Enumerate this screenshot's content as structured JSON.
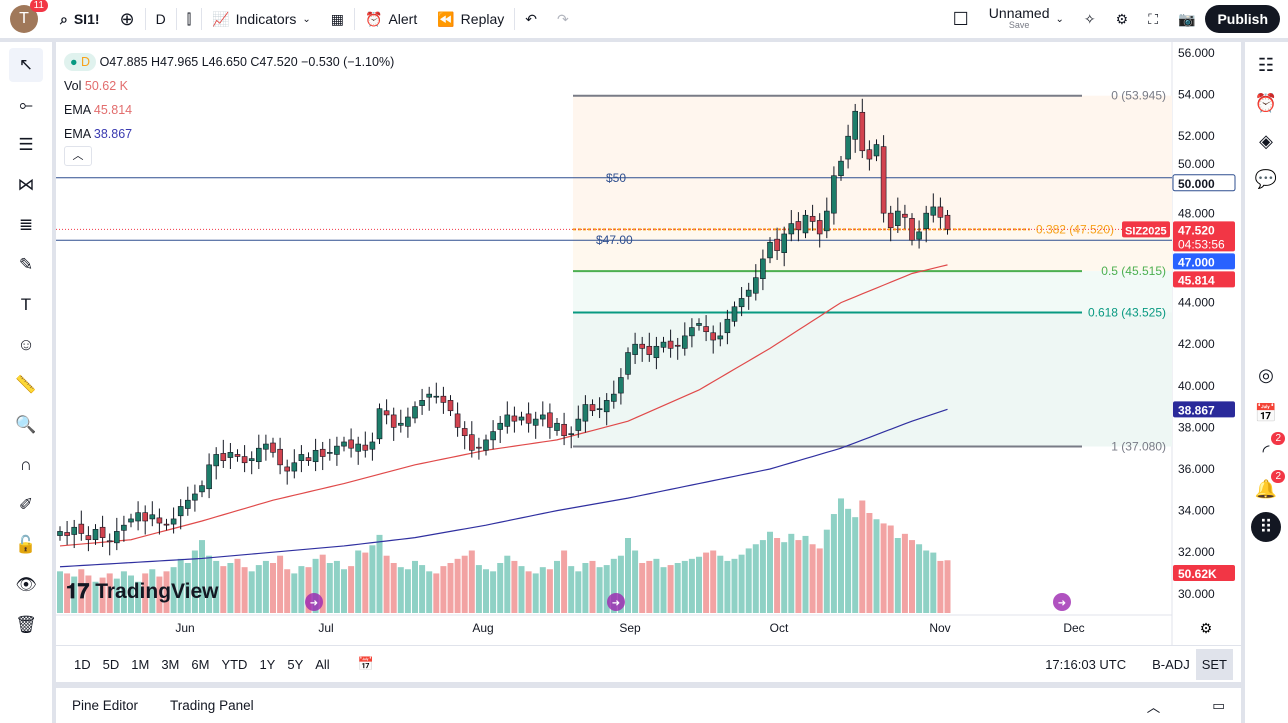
{
  "topbar": {
    "avatar_letter": "T",
    "notifications": "11",
    "symbol": "SI1!",
    "interval": "D",
    "indicators": "Indicators",
    "alert": "Alert",
    "replay": "Replay",
    "layout_name": "Unnamed",
    "layout_sub": "Save",
    "publish": "Publish"
  },
  "legend": {
    "interval": "D",
    "ohlc": "O47.885 H47.965 L46.650 C47.520 −0.530 (−1.10%)",
    "vol_label": "Vol",
    "vol_value": "50.62 K",
    "ema1_label": "EMA",
    "ema1_value": "45.814",
    "ema2_label": "EMA",
    "ema2_value": "38.867"
  },
  "colors": {
    "up": "#26a69a",
    "down": "#ef5350",
    "candle_up": "#1e7d6a",
    "candle_down": "#d2434f",
    "ema_fast": "#e04a4a",
    "ema_slow": "#3030a0",
    "hline": "#2f4f8f",
    "accent": "#2962ff"
  },
  "price_axis": [
    "56.000",
    "54.000",
    "52.000",
    "50.000",
    "48.000",
    "44.000",
    "42.000",
    "40.000",
    "38.000",
    "36.000",
    "34.000",
    "32.000",
    "30.000"
  ],
  "price_tags": {
    "symbol": "SIZ2025",
    "last": "47.520",
    "countdown": "04:53:56",
    "line": "47.000",
    "ema_fast": "45.814",
    "ema_slow": "38.867",
    "volume": "50.62K",
    "level50": "50.000"
  },
  "time_axis": [
    "Jun",
    "Jul",
    "Aug",
    "Sep",
    "Oct",
    "Nov",
    "Dec"
  ],
  "hlines": [
    {
      "label": "$50",
      "price": 50
    },
    {
      "label": "$47.00",
      "price": 47
    }
  ],
  "fib": [
    {
      "label": "0 (53.945)",
      "price": 53.945
    },
    {
      "label": "0.382 (47.520)",
      "price": 47.52
    },
    {
      "label": "0.5 (45.515)",
      "price": 45.515
    },
    {
      "label": "0.618 (43.525)",
      "price": 43.525
    },
    {
      "label": "1 (37.080)",
      "price": 37.08
    }
  ],
  "ranges": [
    "1D",
    "5D",
    "1M",
    "3M",
    "6M",
    "YTD",
    "1Y",
    "5Y",
    "All"
  ],
  "clock": "17:16:03 UTC",
  "badj": "B-ADJ",
  "session": "SET",
  "bottom_tabs": [
    "Pine Editor",
    "Trading Panel"
  ],
  "watermark": "TradingView",
  "right_badges": [
    "2",
    "2"
  ],
  "chart_data": {
    "type": "candlestick",
    "y_range": [
      30,
      56
    ],
    "closes": [
      33.0,
      32.8,
      33.2,
      32.9,
      32.6,
      33.1,
      32.7,
      32.5,
      33.0,
      33.3,
      33.6,
      33.9,
      33.5,
      33.8,
      33.4,
      33.3,
      33.6,
      34.2,
      34.5,
      34.8,
      35.2,
      36.2,
      36.7,
      36.4,
      36.8,
      36.6,
      36.3,
      36.5,
      37.0,
      37.2,
      36.8,
      36.2,
      35.9,
      36.3,
      36.7,
      36.4,
      36.9,
      36.6,
      36.8,
      37.1,
      37.3,
      37.0,
      37.2,
      36.9,
      37.3,
      38.9,
      38.6,
      38.0,
      38.2,
      38.5,
      39.0,
      39.3,
      39.6,
      39.5,
      39.2,
      38.8,
      38.0,
      37.6,
      36.9,
      37.0,
      37.4,
      37.8,
      38.2,
      38.6,
      38.3,
      38.5,
      38.2,
      38.4,
      38.6,
      38.0,
      38.2,
      37.6,
      37.7,
      38.4,
      39.1,
      38.8,
      38.9,
      39.3,
      39.6,
      40.4,
      41.6,
      42.0,
      41.8,
      41.5,
      41.9,
      42.1,
      41.8,
      41.9,
      42.4,
      42.8,
      43.0,
      42.6,
      42.2,
      42.4,
      43.2,
      43.8,
      44.2,
      44.6,
      45.2,
      46.1,
      46.9,
      46.5,
      47.3,
      47.8,
      47.5,
      48.2,
      47.9,
      47.3,
      48.4,
      50.1,
      50.8,
      52.0,
      53.2,
      51.3,
      50.9,
      51.6,
      48.3,
      47.6,
      48.4,
      48.1,
      47.0,
      47.4,
      48.3,
      48.6,
      48.1,
      47.52
    ],
    "volumes_k": [
      40,
      38,
      35,
      42,
      36,
      30,
      34,
      38,
      33,
      40,
      36,
      30,
      38,
      42,
      35,
      40,
      44,
      52,
      48,
      60,
      70,
      55,
      50,
      45,
      48,
      52,
      44,
      40,
      46,
      50,
      48,
      55,
      42,
      38,
      45,
      44,
      52,
      56,
      48,
      50,
      42,
      45,
      60,
      58,
      65,
      75,
      55,
      48,
      44,
      42,
      50,
      46,
      40,
      38,
      45,
      48,
      52,
      55,
      60,
      46,
      42,
      40,
      48,
      55,
      50,
      45,
      40,
      38,
      44,
      42,
      50,
      60,
      45,
      40,
      48,
      50,
      44,
      46,
      52,
      55,
      72,
      60,
      48,
      50,
      52,
      44,
      46,
      48,
      50,
      52,
      54,
      58,
      60,
      55,
      50,
      52,
      56,
      62,
      66,
      70,
      78,
      72,
      68,
      76,
      70,
      74,
      66,
      62,
      80,
      95,
      110,
      100,
      92,
      108,
      96,
      90,
      86,
      84,
      72,
      76,
      70,
      66,
      60,
      58,
      50,
      50.62
    ],
    "ema50_every10": [
      32.3,
      32.6,
      33.5,
      34.5,
      35.3,
      36.2,
      36.9,
      37.4,
      38.3,
      39.8,
      41.8,
      44.0,
      45.4,
      45.814
    ],
    "ema200_every10": [
      31.3,
      31.5,
      31.7,
      32.0,
      32.3,
      32.7,
      33.3,
      34.0,
      34.6,
      35.3,
      36.0,
      37.0,
      38.3,
      38.867
    ]
  }
}
